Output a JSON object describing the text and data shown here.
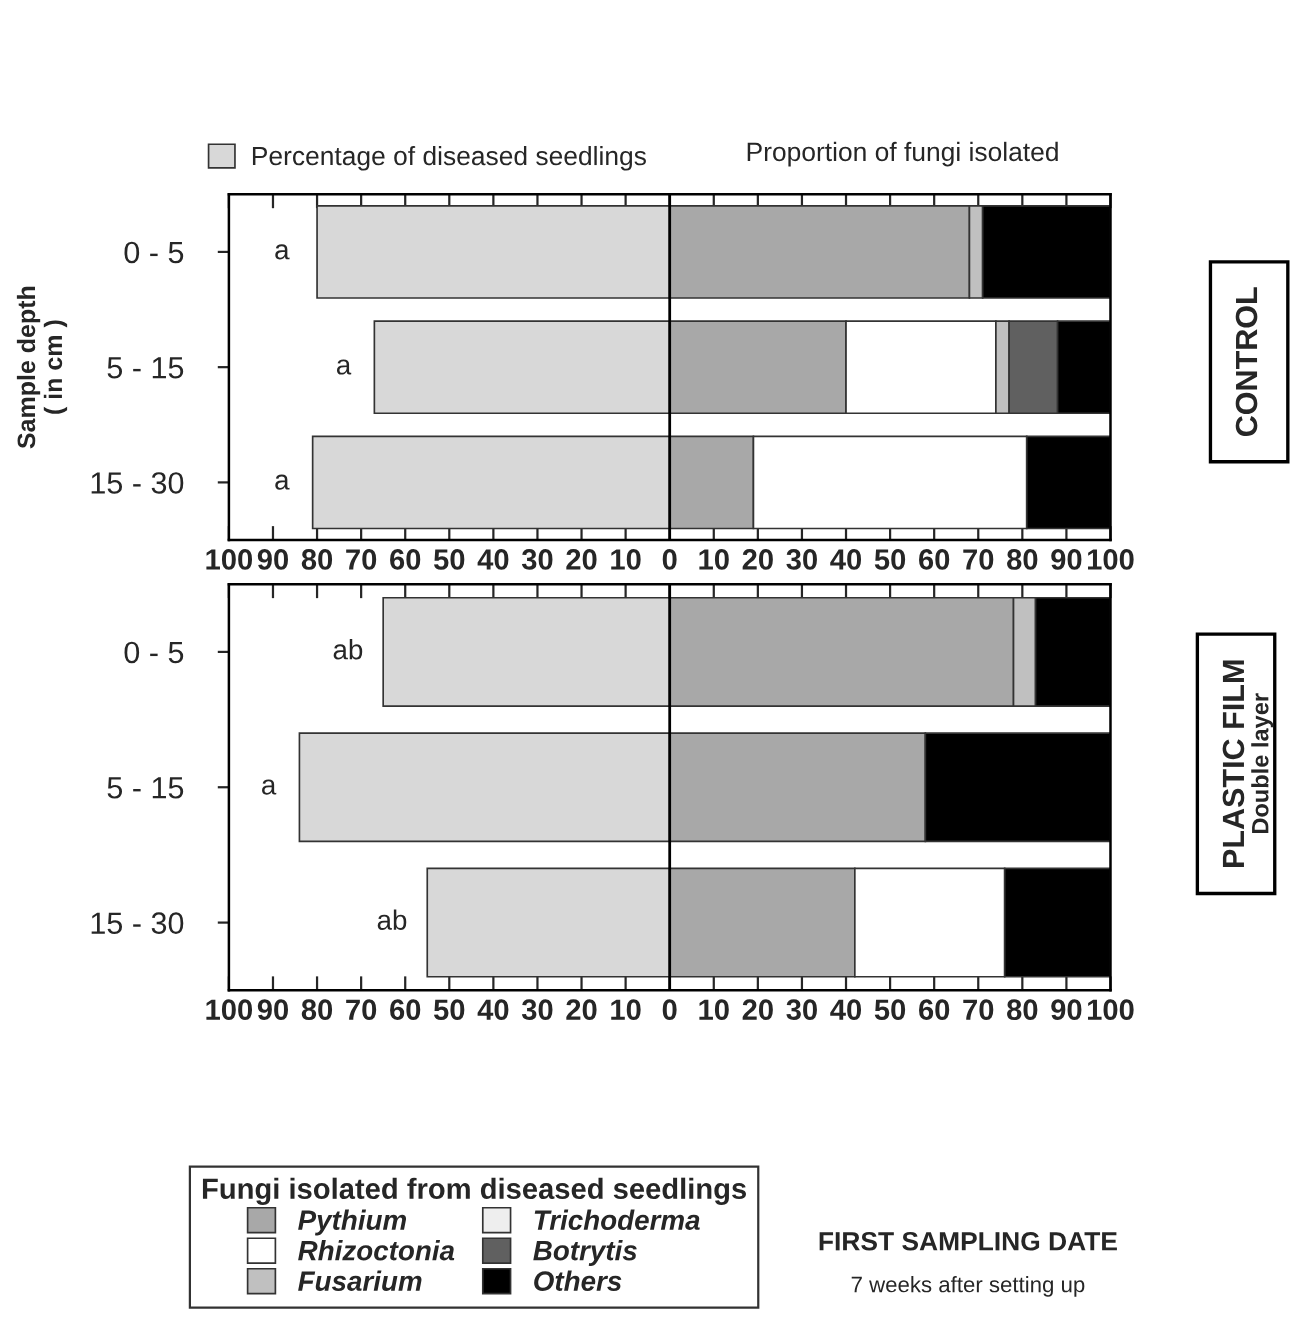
{
  "chart_data": [
    {
      "type": "bar",
      "orientation": "horizontal",
      "stacked": true,
      "categories": [
        "0 - 5",
        "5 - 15",
        "15 - 30"
      ],
      "ylabel": "Sample depth\n( in cm )",
      "series": [
        {
          "name": "Percentage of diseased seedlings",
          "color": "#d8d8d8",
          "values": [
            -80,
            -67,
            -81
          ]
        },
        {
          "color": "#a8a8a8",
          "values": [
            68,
            40,
            19
          ]
        },
        {
          "color": "#ffffff",
          "values": [
            0,
            34,
            62
          ]
        },
        {
          "color": "#c0c0c0",
          "values": [
            3,
            3,
            0
          ]
        },
        {
          "color": "#eeeeee",
          "values": [
            0,
            0,
            0
          ]
        },
        {
          "color": "#606060",
          "values": [
            0,
            11,
            0
          ]
        },
        {
          "color": "#000000",
          "values": [
            29,
            12,
            19
          ]
        }
      ],
      "xlim": [
        -100,
        100
      ],
      "xticks": [
        {
          "value": -100,
          "label": "100"
        },
        {
          "value": -90,
          "label": "90"
        },
        {
          "value": -80,
          "label": "80"
        },
        {
          "value": -70,
          "label": "70"
        },
        {
          "value": -60,
          "label": "60"
        },
        {
          "value": -50,
          "label": "50"
        },
        {
          "value": -40,
          "label": "40"
        },
        {
          "value": -30,
          "label": "30"
        },
        {
          "value": -20,
          "label": "20"
        },
        {
          "value": -10,
          "label": "10"
        },
        0,
        10,
        20,
        30,
        40,
        50,
        60,
        70,
        80,
        90,
        100
      ],
      "ref_lines": [
        {
          "axis": "x",
          "value": 0,
          "color": "#000000"
        }
      ],
      "legend": "top left",
      "annotations": [
        "Proportion of fungi isolated",
        "CONTROL",
        "a",
        "a",
        "a"
      ]
    },
    {
      "type": "bar",
      "orientation": "horizontal",
      "stacked": true,
      "categories": [
        "0 - 5",
        "5 - 15",
        "15 - 30"
      ],
      "series": [
        {
          "color": "#d8d8d8",
          "values": [
            -65,
            -84,
            -55
          ]
        },
        {
          "name": "Pythium",
          "color": "#a8a8a8",
          "values": [
            78,
            58,
            42
          ]
        },
        {
          "name": "Rhizoctonia",
          "color": "#ffffff",
          "values": [
            0,
            0,
            34
          ]
        },
        {
          "name": "Fusarium",
          "color": "#c0c0c0",
          "values": [
            5,
            0,
            0
          ]
        },
        {
          "name": "Trichoderma",
          "color": "#eeeeee",
          "values": [
            0,
            0,
            0
          ]
        },
        {
          "name": "Botrytis",
          "color": "#606060",
          "values": [
            0,
            0,
            0
          ]
        },
        {
          "name": "Others",
          "color": "#000000",
          "values": [
            17,
            42,
            24
          ]
        }
      ],
      "xlim": [
        -100,
        100
      ],
      "xticks": [
        {
          "value": -100,
          "label": "100"
        },
        {
          "value": -90,
          "label": "90"
        },
        {
          "value": -80,
          "label": "80"
        },
        {
          "value": -70,
          "label": "70"
        },
        {
          "value": -60,
          "label": "60"
        },
        {
          "value": -50,
          "label": "50"
        },
        {
          "value": -40,
          "label": "40"
        },
        {
          "value": -30,
          "label": "30"
        },
        {
          "value": -20,
          "label": "20"
        },
        {
          "value": -10,
          "label": "10"
        },
        0,
        10,
        20,
        30,
        40,
        50,
        60,
        70,
        80,
        90,
        100
      ],
      "ref_lines": [
        {
          "axis": "x",
          "value": 0,
          "color": "#000000"
        }
      ],
      "legend": "bottom left",
      "legend_title": "Fungi isolated from diseased seedlings",
      "annotations": [
        "PLASTIC FILM",
        "Double layer",
        "FIRST SAMPLING DATE",
        "7 weeks after setting up",
        "ab",
        "a",
        "ab"
      ]
    }
  ]
}
